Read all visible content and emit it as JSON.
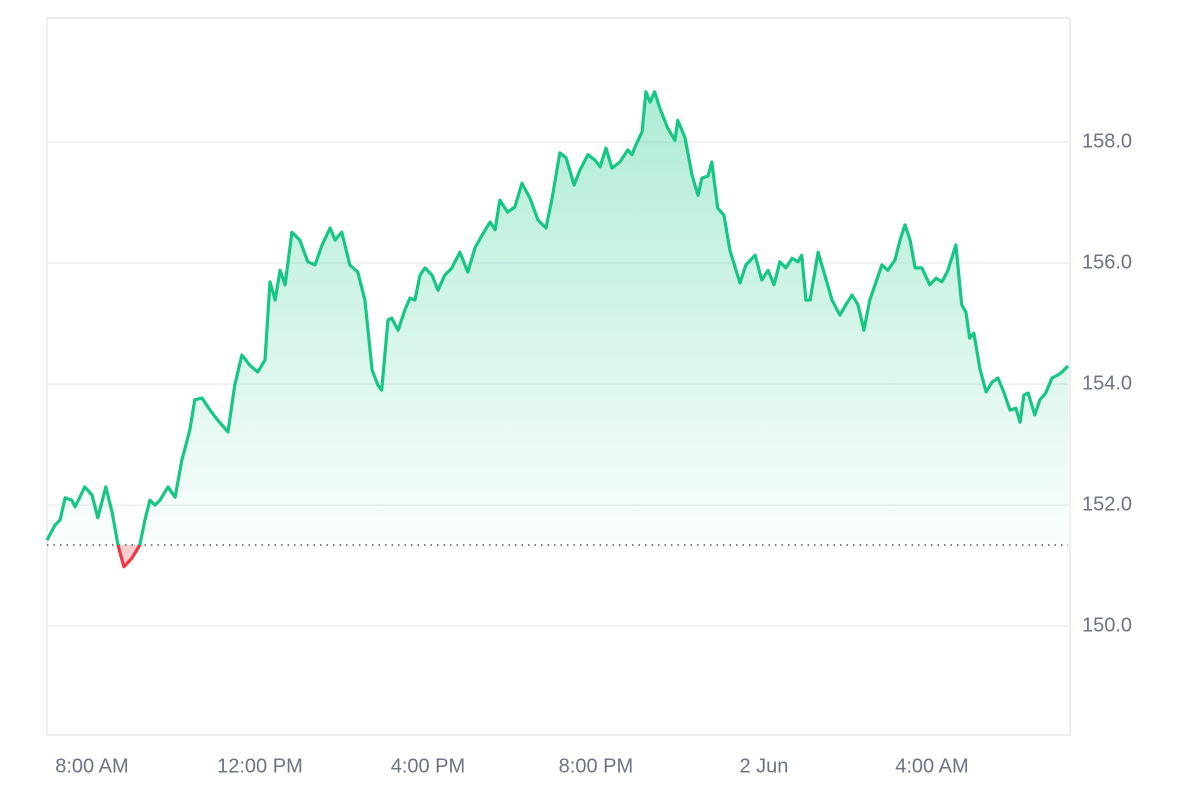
{
  "chart_data": {
    "type": "line",
    "x": [
      6.93,
      7.12,
      7.24,
      7.36,
      7.52,
      7.6,
      7.83,
      8.0,
      8.14,
      8.33,
      8.48,
      8.62,
      8.76,
      8.95,
      9.14,
      9.26,
      9.38,
      9.5,
      9.62,
      9.81,
      9.98,
      10.14,
      10.33,
      10.45,
      10.62,
      10.81,
      11.0,
      11.24,
      11.4,
      11.57,
      11.76,
      11.95,
      12.12,
      12.24,
      12.36,
      12.48,
      12.6,
      12.76,
      12.95,
      13.14,
      13.31,
      13.48,
      13.67,
      13.79,
      13.95,
      14.14,
      14.33,
      14.5,
      14.67,
      14.81,
      14.9,
      15.05,
      15.14,
      15.29,
      15.45,
      15.57,
      15.69,
      15.81,
      15.93,
      16.1,
      16.24,
      16.4,
      16.57,
      16.76,
      16.95,
      17.12,
      17.29,
      17.48,
      17.6,
      17.71,
      17.9,
      18.07,
      18.24,
      18.43,
      18.62,
      18.81,
      18.95,
      19.14,
      19.29,
      19.48,
      19.62,
      19.81,
      19.98,
      20.1,
      20.24,
      20.38,
      20.57,
      20.76,
      20.86,
      20.95,
      21.1,
      21.19,
      21.29,
      21.4,
      21.52,
      21.71,
      21.88,
      21.95,
      22.12,
      22.29,
      22.43,
      22.52,
      22.67,
      22.76,
      22.9,
      23.05,
      23.19,
      23.43,
      23.57,
      23.79,
      23.95,
      24.1,
      24.24,
      24.38,
      24.52,
      24.67,
      24.81,
      24.9,
      25.0,
      25.1,
      25.29,
      25.45,
      25.62,
      25.81,
      25.95,
      26.1,
      26.24,
      26.38,
      26.52,
      26.67,
      26.81,
      26.95,
      27.12,
      27.24,
      27.36,
      27.48,
      27.6,
      27.76,
      27.95,
      28.1,
      28.24,
      28.38,
      28.57,
      28.71,
      28.81,
      28.9,
      29.0,
      29.14,
      29.29,
      29.43,
      29.57,
      29.71,
      29.86,
      30.0,
      30.1,
      30.19,
      30.29,
      30.45,
      30.57,
      30.71,
      30.86,
      31.0,
      31.1,
      31.24
    ],
    "values": [
      151.42,
      151.67,
      151.75,
      152.12,
      152.08,
      151.97,
      152.3,
      152.17,
      151.79,
      152.3,
      151.88,
      151.34,
      150.98,
      151.12,
      151.34,
      151.75,
      152.08,
      152.0,
      152.08,
      152.3,
      152.13,
      152.74,
      153.24,
      153.74,
      153.77,
      153.57,
      153.4,
      153.21,
      153.98,
      154.48,
      154.31,
      154.2,
      154.4,
      155.69,
      155.39,
      155.88,
      155.64,
      156.51,
      156.38,
      156.02,
      155.97,
      156.3,
      156.58,
      156.38,
      156.51,
      155.97,
      155.85,
      155.39,
      154.23,
      153.98,
      153.9,
      155.06,
      155.09,
      154.89,
      155.22,
      155.42,
      155.39,
      155.8,
      155.92,
      155.8,
      155.55,
      155.8,
      155.92,
      156.18,
      155.85,
      156.25,
      156.46,
      156.68,
      156.55,
      157.04,
      156.84,
      156.93,
      157.32,
      157.07,
      156.71,
      156.58,
      157.04,
      157.82,
      157.74,
      157.29,
      157.54,
      157.79,
      157.7,
      157.59,
      157.9,
      157.57,
      157.67,
      157.87,
      157.79,
      157.95,
      158.17,
      158.83,
      158.66,
      158.83,
      158.56,
      158.23,
      158.03,
      158.36,
      158.07,
      157.45,
      157.12,
      157.4,
      157.44,
      157.67,
      156.91,
      156.79,
      156.21,
      155.67,
      155.97,
      156.13,
      155.72,
      155.88,
      155.64,
      156.02,
      155.92,
      156.08,
      156.02,
      156.13,
      155.39,
      155.39,
      156.18,
      155.8,
      155.39,
      155.14,
      155.31,
      155.47,
      155.31,
      154.89,
      155.39,
      155.69,
      155.97,
      155.88,
      156.05,
      156.38,
      156.63,
      156.38,
      155.92,
      155.92,
      155.64,
      155.75,
      155.69,
      155.88,
      156.3,
      155.31,
      155.19,
      154.76,
      154.84,
      154.26,
      153.87,
      154.03,
      154.1,
      153.87,
      153.57,
      153.6,
      153.37,
      153.82,
      153.85,
      153.49,
      153.74,
      153.85,
      154.1,
      154.15,
      154.2,
      154.3
    ],
    "baseline": 151.34,
    "color": "#16c784",
    "negative_color": "#ea3943",
    "xlim": [
      6.93,
      31.24
    ],
    "xticks": [
      {
        "value": 8,
        "label": "8:00 AM"
      },
      {
        "value": 12,
        "label": "12:00 PM"
      },
      {
        "value": 16,
        "label": "4:00 PM"
      },
      {
        "value": 20,
        "label": "8:00 PM"
      },
      {
        "value": 24,
        "label": "2 Jun"
      },
      {
        "value": 28,
        "label": "4:00 AM"
      }
    ],
    "ylim": [
      148.2,
      160.05
    ],
    "yticks": [
      {
        "value": 150,
        "label": "150.0"
      },
      {
        "value": 152,
        "label": "152.0"
      },
      {
        "value": 154,
        "label": "154.0"
      },
      {
        "value": 156,
        "label": "156.0"
      },
      {
        "value": 158,
        "label": "158.0"
      }
    ],
    "grid": true
  }
}
